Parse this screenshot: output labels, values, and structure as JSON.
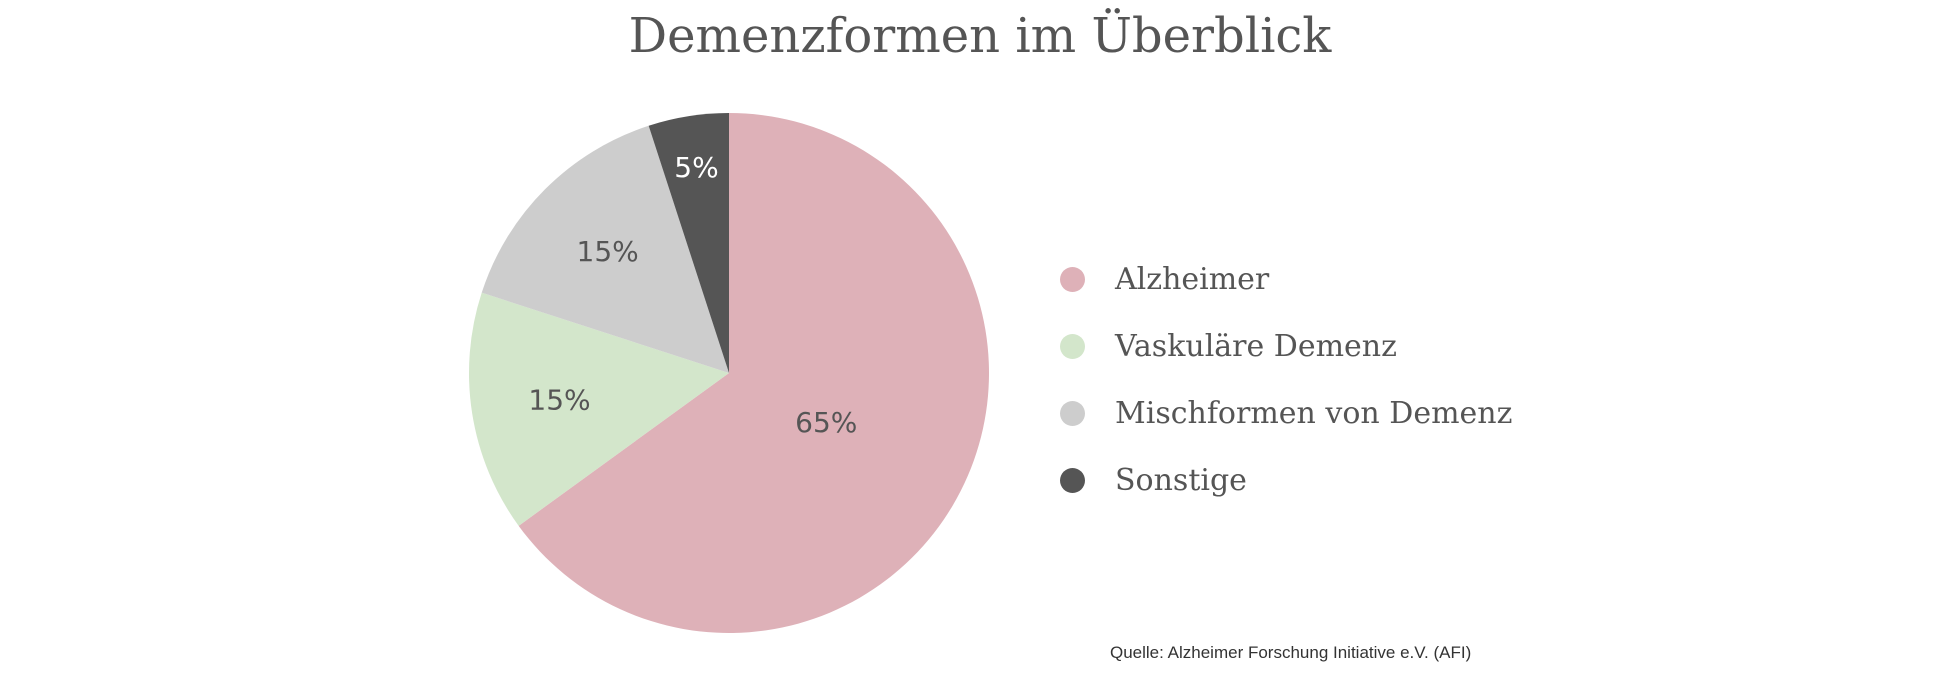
{
  "chart_data": {
    "type": "pie",
    "title": "Demenzformen im Überblick",
    "slices": [
      {
        "label": "Alzheimer",
        "value": 65,
        "display": "65%",
        "color": "#deb1b8",
        "label_color": "#555555"
      },
      {
        "label": "Vaskuläre Demenz",
        "value": 15,
        "display": "15%",
        "color": "#d3e6cb",
        "label_color": "#555555"
      },
      {
        "label": "Mischformen von Demenz",
        "value": 15,
        "display": "15%",
        "color": "#cdcdcd",
        "label_color": "#555555"
      },
      {
        "label": "Sonstige",
        "value": 5,
        "display": "5%",
        "color": "#555555",
        "label_color": "#ffffff"
      }
    ],
    "legend_position": "right",
    "start_angle": "12 o'clock, clockwise",
    "source": "Quelle: Alzheimer Forschung Initiative e.V. (AFI)"
  }
}
